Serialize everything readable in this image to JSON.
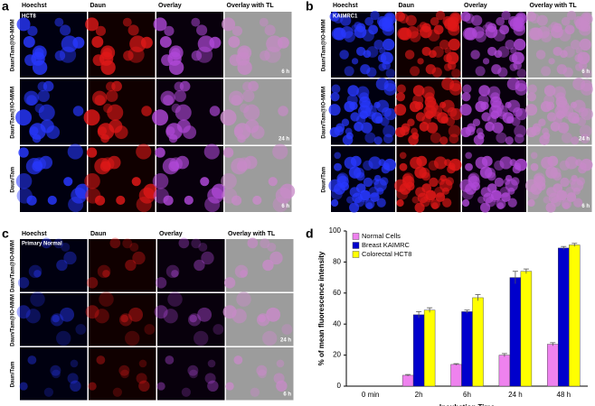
{
  "panels": [
    {
      "label": "a",
      "columns": [
        "Hoechst",
        "Daun",
        "Overlay",
        "Overlay with TL"
      ],
      "cell_line": "HCT8",
      "rows": [
        {
          "label": "Daun/Tam@IO-MMM",
          "time": "6 h"
        },
        {
          "label": "Daun/Tam@IO-MMM",
          "time": "24 h"
        },
        {
          "label": "Daun/Tam",
          "time": "6 h"
        }
      ]
    },
    {
      "label": "b",
      "columns": [
        "Hoechst",
        "Daun",
        "Overlay",
        "Overlay with TL"
      ],
      "cell_line": "KAIMRC1",
      "rows": [
        {
          "label": "Daun/Tam@IO-MMM",
          "time": "6 h"
        },
        {
          "label": "Daun/Tam@IO-MMM",
          "time": "24 h"
        },
        {
          "label": "Daun/Tam",
          "time": "6 h"
        }
      ]
    },
    {
      "label": "c",
      "columns": [
        "Hoechst",
        "Daun",
        "Overlay",
        "Overlay with TL"
      ],
      "cell_line": "Primary Normal",
      "rows": [
        {
          "label": "Daun/Tam@IO-MMM"
        },
        {
          "label": "Daun/Tam@IO-MMM",
          "time": "24 h"
        },
        {
          "label": "Daun/Tam",
          "time": "6 h"
        }
      ]
    }
  ],
  "chart_data": {
    "type": "bar",
    "label": "d",
    "categories": [
      "0 min",
      "2h",
      "6h",
      "24 h",
      "48 h"
    ],
    "series": [
      {
        "name": "Normal Cells",
        "color": "#ee82ee",
        "values": [
          0,
          7,
          14,
          20,
          27
        ],
        "errors": [
          0,
          0.5,
          0.5,
          1,
          1
        ]
      },
      {
        "name": "Breast KAIMRC",
        "color": "#0000cc",
        "values": [
          0,
          46,
          48,
          70,
          89
        ],
        "errors": [
          0,
          2,
          1,
          4,
          1
        ]
      },
      {
        "name": "Colorectal HCT8",
        "color": "#ffff00",
        "values": [
          0,
          49,
          57,
          74,
          91
        ],
        "errors": [
          0,
          1.5,
          2,
          1.5,
          1
        ]
      }
    ],
    "x_label": "Incubation Time",
    "y_label": "% of mean fluorescence intensity",
    "ylim": [
      0,
      100
    ],
    "yticks": [
      0,
      20,
      40,
      60,
      80,
      100
    ]
  }
}
